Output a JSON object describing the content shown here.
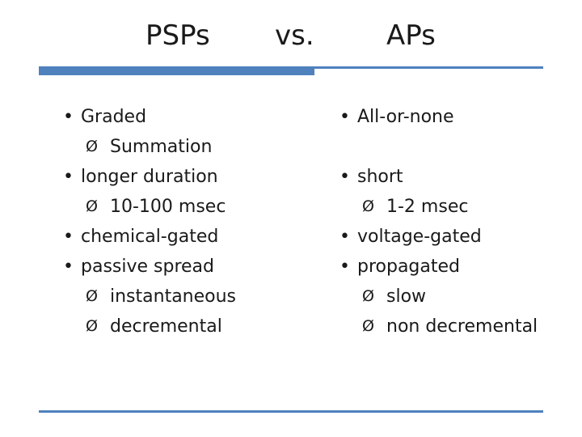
{
  "colors": {
    "accent": "#4f81bd",
    "text": "#1a1a1a",
    "background": "#ffffff"
  },
  "title": {
    "left": "PSPs",
    "middle": "vs.",
    "right": "APs"
  },
  "bullet_glyphs": {
    "level1": "•",
    "level2": "Ø"
  },
  "left_column": {
    "items": [
      {
        "level": 1,
        "text": "Graded"
      },
      {
        "level": 2,
        "text": "Summation"
      },
      {
        "level": 1,
        "text": "longer duration"
      },
      {
        "level": 2,
        "text": "10-100 msec"
      },
      {
        "level": 1,
        "text": "chemical-gated"
      },
      {
        "level": 1,
        "text": "passive spread"
      },
      {
        "level": 2,
        "text": "instantaneous"
      },
      {
        "level": 2,
        "text": "decremental"
      }
    ]
  },
  "right_column": {
    "items": [
      {
        "level": 1,
        "text": "All-or-none"
      },
      {
        "level": 0,
        "text": ""
      },
      {
        "level": 1,
        "text": "short"
      },
      {
        "level": 2,
        "text": "1-2 msec"
      },
      {
        "level": 1,
        "text": "voltage-gated"
      },
      {
        "level": 1,
        "text": "propagated"
      },
      {
        "level": 2,
        "text": "slow"
      },
      {
        "level": 2,
        "text": "non decremental"
      }
    ]
  }
}
